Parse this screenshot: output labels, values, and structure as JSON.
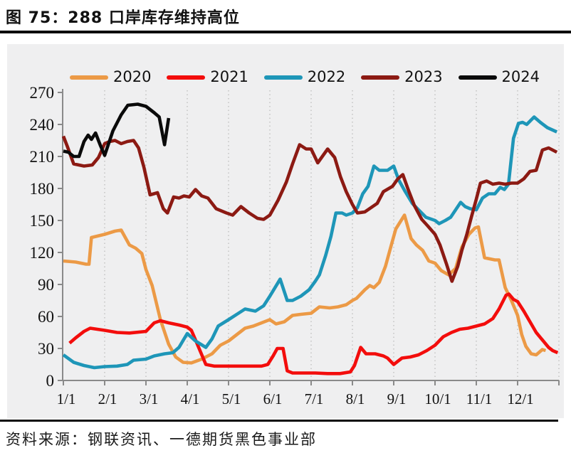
{
  "title": "图 75：288 口岸库存维持高位",
  "source_note": "资料来源：钢联资讯、一德期货黑色事业部",
  "chart_data": {
    "type": "line",
    "title": "288口岸库存",
    "legend_position": "top",
    "grid": "vertical-dotted-monthly",
    "colors": {
      "panel_bg": "#efeff0",
      "axis": "#8a8a8a",
      "gridline": "#c6c6c6",
      "tick_text": "#111111"
    },
    "y_axis": {
      "min": 0,
      "max": 270,
      "step": 30,
      "tick_labels": [
        "270",
        "240",
        "210",
        "180",
        "150",
        "120",
        "90",
        "60",
        "30",
        "0"
      ]
    },
    "x_axis": {
      "unit": "month/day",
      "tick_labels": [
        "1/1",
        "2/1",
        "3/1",
        "4/1",
        "5/1",
        "6/1",
        "7/1",
        "8/1",
        "9/1",
        "10/1",
        "11/1",
        "12/1"
      ]
    },
    "series": [
      {
        "name": "2020",
        "color": "#EC9A46",
        "points": [
          [
            0,
            112
          ],
          [
            0.3,
            111
          ],
          [
            0.55,
            109
          ],
          [
            0.62,
            109
          ],
          [
            0.68,
            134
          ],
          [
            1,
            137
          ],
          [
            1.25,
            140
          ],
          [
            1.4,
            141
          ],
          [
            1.6,
            127
          ],
          [
            1.75,
            124
          ],
          [
            1.9,
            119
          ],
          [
            2,
            104
          ],
          [
            2.15,
            89
          ],
          [
            2.35,
            57
          ],
          [
            2.55,
            34
          ],
          [
            2.72,
            22
          ],
          [
            2.9,
            17
          ],
          [
            3.1,
            16.5
          ],
          [
            3.35,
            20
          ],
          [
            3.6,
            25
          ],
          [
            3.8,
            33
          ],
          [
            4,
            37
          ],
          [
            4.2,
            43
          ],
          [
            4.4,
            49
          ],
          [
            4.6,
            51
          ],
          [
            4.8,
            54
          ],
          [
            5,
            57
          ],
          [
            5.15,
            53
          ],
          [
            5.35,
            55
          ],
          [
            5.55,
            61
          ],
          [
            5.75,
            62
          ],
          [
            6,
            63
          ],
          [
            6.2,
            69
          ],
          [
            6.45,
            68
          ],
          [
            6.65,
            69
          ],
          [
            6.85,
            71
          ],
          [
            7,
            75
          ],
          [
            7.1,
            77
          ],
          [
            7.3,
            85
          ],
          [
            7.42,
            89
          ],
          [
            7.52,
            87
          ],
          [
            7.65,
            92
          ],
          [
            7.8,
            107
          ],
          [
            7.92,
            124
          ],
          [
            8.05,
            142
          ],
          [
            8.26,
            155
          ],
          [
            8.42,
            133
          ],
          [
            8.55,
            127
          ],
          [
            8.7,
            122
          ],
          [
            8.85,
            112
          ],
          [
            9,
            110
          ],
          [
            9.15,
            103
          ],
          [
            9.33,
            99
          ],
          [
            9.5,
            105
          ],
          [
            9.65,
            125
          ],
          [
            9.82,
            137
          ],
          [
            9.97,
            143
          ],
          [
            10.05,
            144
          ],
          [
            10.2,
            115
          ],
          [
            10.45,
            113
          ],
          [
            10.55,
            113
          ],
          [
            10.7,
            87
          ],
          [
            10.85,
            75
          ],
          [
            11,
            61
          ],
          [
            11.1,
            43
          ],
          [
            11.2,
            32
          ],
          [
            11.33,
            25
          ],
          [
            11.45,
            24
          ],
          [
            11.6,
            29
          ],
          [
            11.68,
            28
          ]
        ]
      },
      {
        "name": "2021",
        "color": "#F30D0C",
        "points": [
          [
            0.15,
            35
          ],
          [
            0.3,
            40
          ],
          [
            0.5,
            46
          ],
          [
            0.65,
            49
          ],
          [
            1,
            47
          ],
          [
            1.3,
            45
          ],
          [
            1.6,
            44.5
          ],
          [
            2,
            46
          ],
          [
            2.2,
            54
          ],
          [
            2.35,
            56
          ],
          [
            2.55,
            54
          ],
          [
            2.8,
            52
          ],
          [
            3,
            50
          ],
          [
            3.1,
            47
          ],
          [
            3.2,
            38
          ],
          [
            3.45,
            15
          ],
          [
            3.65,
            13.5
          ],
          [
            3.9,
            13.5
          ],
          [
            4.2,
            13.5
          ],
          [
            4.5,
            13.5
          ],
          [
            4.8,
            13.5
          ],
          [
            4.95,
            15
          ],
          [
            5.08,
            23
          ],
          [
            5.18,
            30
          ],
          [
            5.32,
            30
          ],
          [
            5.42,
            9
          ],
          [
            5.55,
            7
          ],
          [
            5.8,
            7
          ],
          [
            6.1,
            7
          ],
          [
            6.4,
            6.5
          ],
          [
            6.7,
            6.5
          ],
          [
            6.95,
            8
          ],
          [
            7.05,
            14
          ],
          [
            7.2,
            31
          ],
          [
            7.33,
            25
          ],
          [
            7.55,
            25
          ],
          [
            7.75,
            23
          ],
          [
            7.85,
            21
          ],
          [
            8,
            15
          ],
          [
            8.2,
            21
          ],
          [
            8.4,
            22
          ],
          [
            8.6,
            24
          ],
          [
            8.8,
            28
          ],
          [
            9,
            33
          ],
          [
            9.2,
            41
          ],
          [
            9.4,
            45
          ],
          [
            9.6,
            48
          ],
          [
            9.8,
            49
          ],
          [
            10,
            51
          ],
          [
            10.2,
            53
          ],
          [
            10.4,
            58
          ],
          [
            10.55,
            67
          ],
          [
            10.72,
            80
          ],
          [
            10.79,
            81
          ],
          [
            10.9,
            76
          ],
          [
            11,
            74
          ],
          [
            11.15,
            65
          ],
          [
            11.3,
            55
          ],
          [
            11.45,
            45
          ],
          [
            11.6,
            38
          ],
          [
            11.75,
            31
          ],
          [
            11.85,
            28
          ],
          [
            11.97,
            26
          ]
        ]
      },
      {
        "name": "2022",
        "color": "#1E96B8",
        "points": [
          [
            0,
            24
          ],
          [
            0.25,
            17
          ],
          [
            0.5,
            14
          ],
          [
            0.75,
            12
          ],
          [
            1,
            13
          ],
          [
            1.3,
            13.5
          ],
          [
            1.55,
            15
          ],
          [
            1.7,
            19
          ],
          [
            2,
            20
          ],
          [
            2.2,
            23
          ],
          [
            2.45,
            25
          ],
          [
            2.65,
            26
          ],
          [
            2.8,
            31
          ],
          [
            3,
            44
          ],
          [
            3.2,
            37
          ],
          [
            3.45,
            31
          ],
          [
            3.6,
            39
          ],
          [
            3.75,
            51
          ],
          [
            4,
            57
          ],
          [
            4.2,
            62
          ],
          [
            4.4,
            67
          ],
          [
            4.65,
            65
          ],
          [
            4.85,
            70
          ],
          [
            5,
            79
          ],
          [
            5.25,
            95
          ],
          [
            5.42,
            75
          ],
          [
            5.55,
            75
          ],
          [
            5.75,
            79
          ],
          [
            5.95,
            85
          ],
          [
            6.1,
            93
          ],
          [
            6.2,
            99
          ],
          [
            6.35,
            117
          ],
          [
            6.48,
            135
          ],
          [
            6.6,
            157
          ],
          [
            6.75,
            157
          ],
          [
            6.85,
            155
          ],
          [
            7,
            157
          ],
          [
            7.12,
            162
          ],
          [
            7.25,
            175
          ],
          [
            7.38,
            182
          ],
          [
            7.52,
            201
          ],
          [
            7.65,
            197
          ],
          [
            7.85,
            197
          ],
          [
            8,
            201
          ],
          [
            8.12,
            188
          ],
          [
            8.28,
            177
          ],
          [
            8.45,
            166
          ],
          [
            8.6,
            160
          ],
          [
            8.78,
            153
          ],
          [
            9,
            150
          ],
          [
            9.1,
            147
          ],
          [
            9.25,
            150
          ],
          [
            9.38,
            153
          ],
          [
            9.5,
            160
          ],
          [
            9.62,
            167
          ],
          [
            9.73,
            163
          ],
          [
            9.85,
            161
          ],
          [
            10,
            160
          ],
          [
            10.15,
            171
          ],
          [
            10.3,
            175
          ],
          [
            10.45,
            175
          ],
          [
            10.58,
            181
          ],
          [
            10.68,
            179
          ],
          [
            10.78,
            184
          ],
          [
            10.9,
            227
          ],
          [
            11.02,
            241
          ],
          [
            11.12,
            242
          ],
          [
            11.22,
            240
          ],
          [
            11.4,
            247
          ],
          [
            11.55,
            242
          ],
          [
            11.72,
            237
          ],
          [
            11.95,
            233
          ]
        ]
      },
      {
        "name": "2023",
        "color": "#8C1A13",
        "points": [
          [
            0,
            229
          ],
          [
            0.1,
            219
          ],
          [
            0.25,
            203
          ],
          [
            0.5,
            201
          ],
          [
            0.7,
            202
          ],
          [
            0.85,
            209
          ],
          [
            1,
            222
          ],
          [
            1.12,
            224
          ],
          [
            1.25,
            225
          ],
          [
            1.4,
            222
          ],
          [
            1.55,
            224
          ],
          [
            1.7,
            225
          ],
          [
            1.82,
            218
          ],
          [
            1.95,
            200
          ],
          [
            2.1,
            174
          ],
          [
            2.28,
            176
          ],
          [
            2.42,
            161
          ],
          [
            2.52,
            157
          ],
          [
            2.67,
            172
          ],
          [
            2.8,
            171
          ],
          [
            2.92,
            173
          ],
          [
            3.05,
            172
          ],
          [
            3.2,
            179
          ],
          [
            3.35,
            173
          ],
          [
            3.5,
            171
          ],
          [
            3.7,
            161
          ],
          [
            3.95,
            157
          ],
          [
            4.1,
            155
          ],
          [
            4.3,
            163
          ],
          [
            4.5,
            157
          ],
          [
            4.7,
            152
          ],
          [
            4.85,
            151
          ],
          [
            5,
            155
          ],
          [
            5.2,
            169
          ],
          [
            5.4,
            186
          ],
          [
            5.55,
            203
          ],
          [
            5.72,
            221
          ],
          [
            5.88,
            217
          ],
          [
            6,
            217
          ],
          [
            6.16,
            204
          ],
          [
            6.4,
            217
          ],
          [
            6.57,
            209
          ],
          [
            6.71,
            191
          ],
          [
            6.85,
            177
          ],
          [
            7,
            165
          ],
          [
            7.12,
            157
          ],
          [
            7.3,
            158
          ],
          [
            7.45,
            162
          ],
          [
            7.6,
            166
          ],
          [
            7.75,
            177
          ],
          [
            7.97,
            182
          ],
          [
            8.1,
            189
          ],
          [
            8.22,
            193
          ],
          [
            8.35,
            179
          ],
          [
            8.5,
            164
          ],
          [
            8.68,
            151
          ],
          [
            8.82,
            145
          ],
          [
            9,
            137
          ],
          [
            9.12,
            127
          ],
          [
            9.28,
            109
          ],
          [
            9.41,
            93
          ],
          [
            9.55,
            107
          ],
          [
            9.65,
            122
          ],
          [
            9.77,
            137
          ],
          [
            9.88,
            153
          ],
          [
            10,
            170
          ],
          [
            10.1,
            185
          ],
          [
            10.25,
            187
          ],
          [
            10.4,
            184
          ],
          [
            10.55,
            185
          ],
          [
            10.7,
            184
          ],
          [
            10.85,
            185
          ],
          [
            11,
            185
          ],
          [
            11.15,
            189
          ],
          [
            11.3,
            196
          ],
          [
            11.45,
            197
          ],
          [
            11.6,
            216
          ],
          [
            11.75,
            218
          ],
          [
            11.95,
            214
          ]
        ]
      },
      {
        "name": "2024",
        "color": "#0a0a0a",
        "points": [
          [
            0,
            215
          ],
          [
            0.12,
            214
          ],
          [
            0.25,
            210
          ],
          [
            0.38,
            210
          ],
          [
            0.5,
            224
          ],
          [
            0.6,
            230
          ],
          [
            0.68,
            226
          ],
          [
            0.78,
            232
          ],
          [
            0.9,
            220
          ],
          [
            1,
            211
          ],
          [
            1.2,
            234
          ],
          [
            1.4,
            249
          ],
          [
            1.56,
            258
          ],
          [
            1.8,
            259
          ],
          [
            2,
            257
          ],
          [
            2.2,
            251
          ],
          [
            2.32,
            247
          ],
          [
            2.45,
            221
          ],
          [
            2.55,
            246
          ]
        ]
      }
    ]
  }
}
